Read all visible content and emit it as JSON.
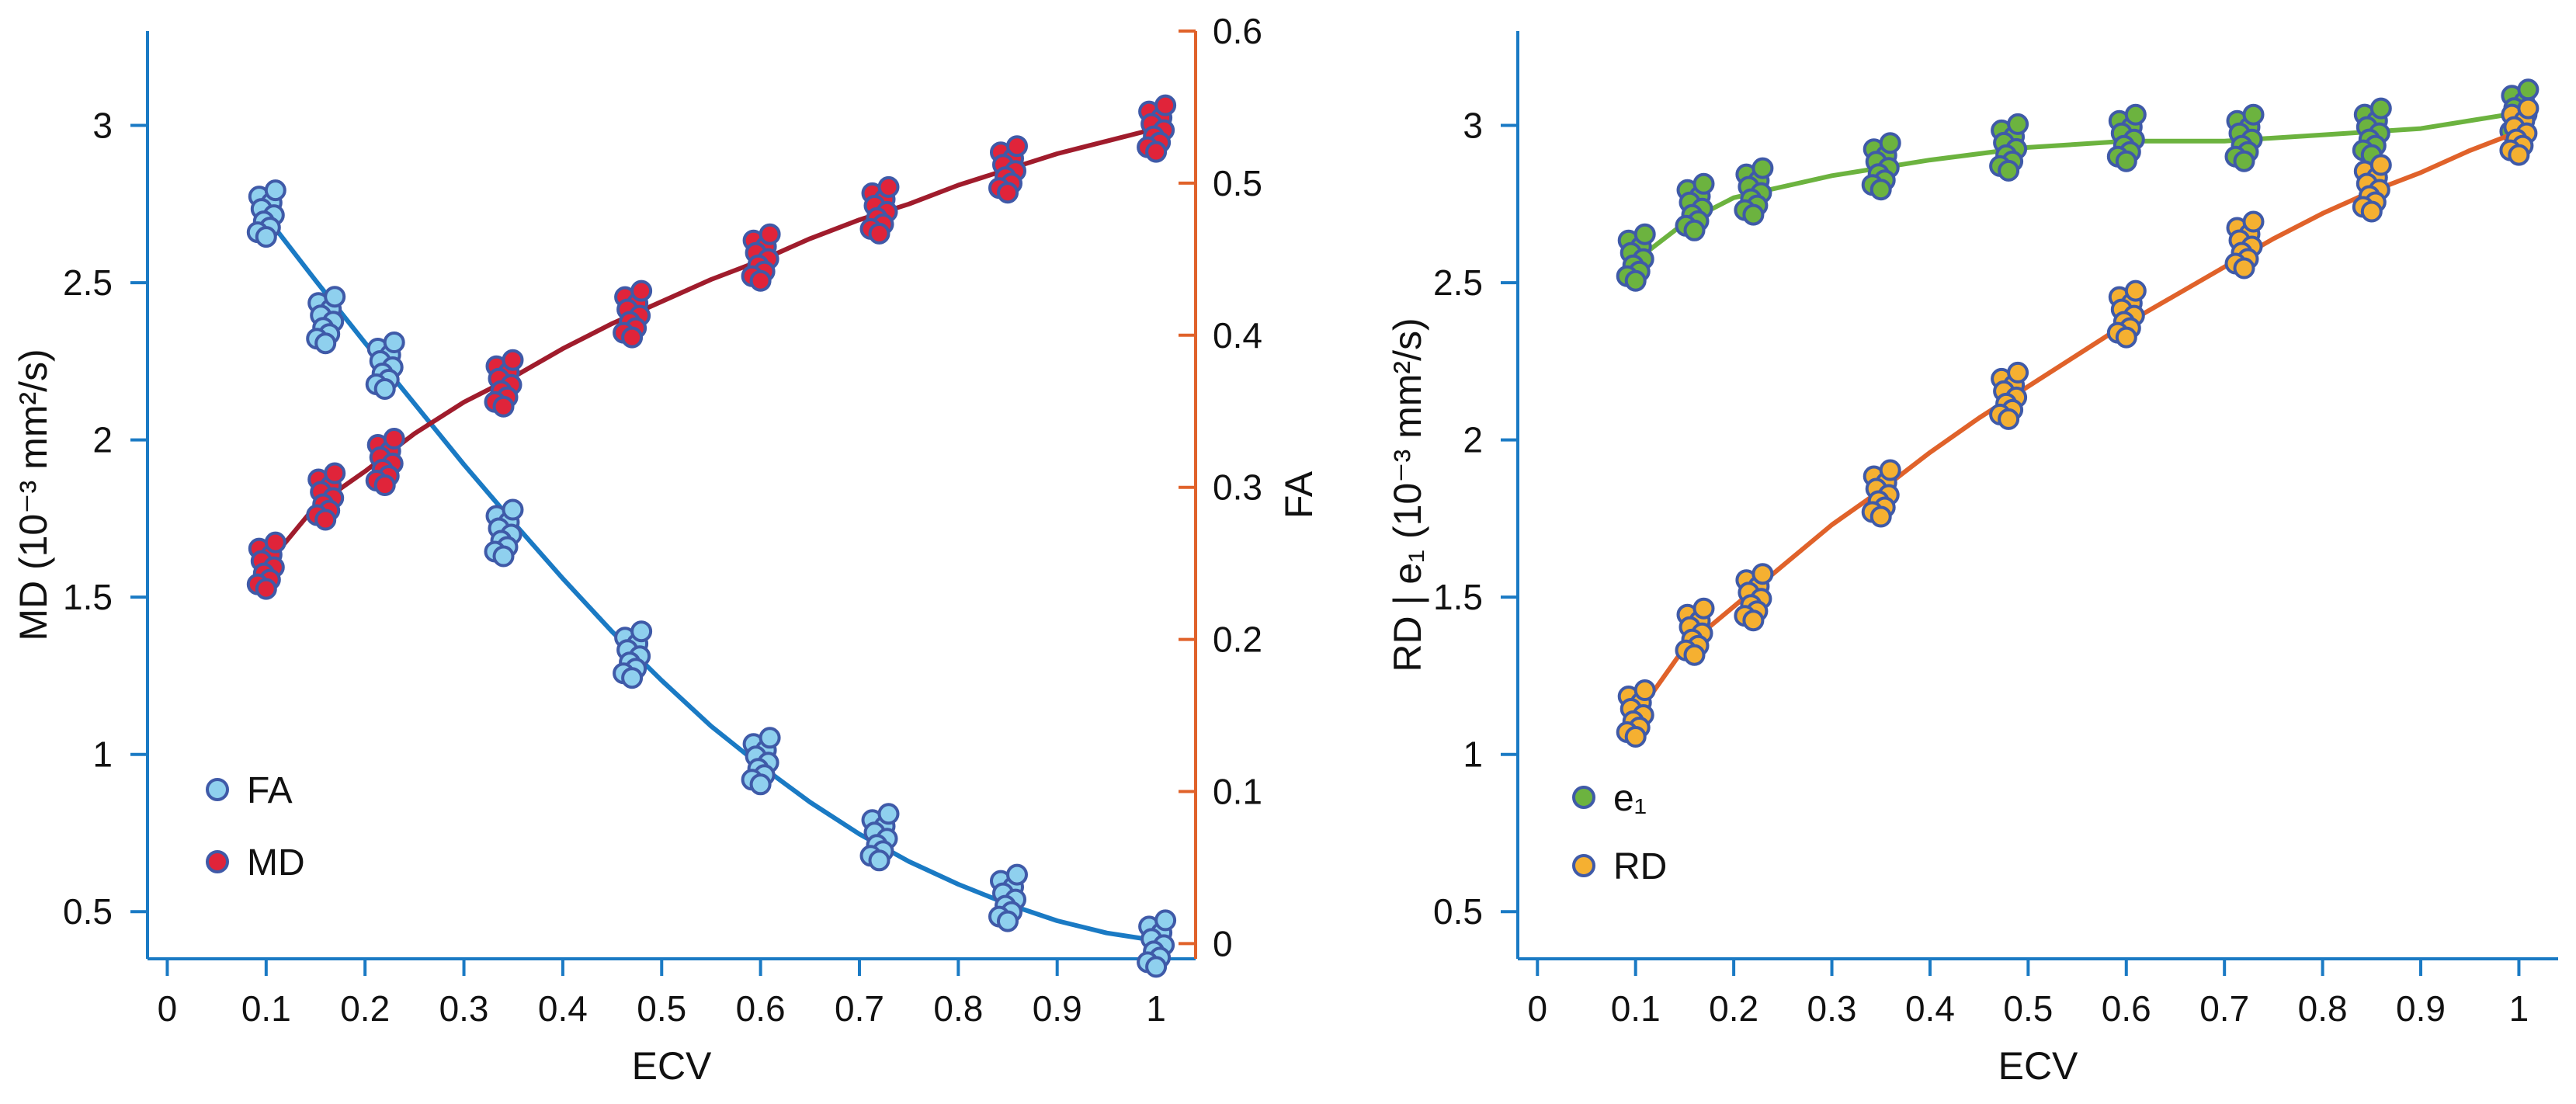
{
  "chart_data": [
    {
      "type": "line",
      "panel": "left",
      "xlabel": "ECV",
      "ylabel": "MD (10⁻³ mm²/s)",
      "ylabel_right": "FA",
      "xlim": [
        -0.02,
        1.04
      ],
      "ylim": [
        0.35,
        3.3
      ],
      "ylim_right": [
        -0.01,
        0.6
      ],
      "xticks": [
        "0",
        "0.1",
        "0.2",
        "0.3",
        "0.4",
        "0.5",
        "0.6",
        "0.7",
        "0.8",
        "0.9",
        "1"
      ],
      "yticks": [
        "0.5",
        "1",
        "1.5",
        "2",
        "2.5",
        "3"
      ],
      "yticks_right": [
        "0",
        "0.1",
        "0.2",
        "0.3",
        "0.4",
        "0.5",
        "0.6"
      ],
      "legend": [
        "FA",
        "MD"
      ],
      "legend_position": "bottom-left",
      "series": [
        {
          "name": "FA",
          "axis": "right",
          "color": "#1a7ac4",
          "marker_fill": "#8fd0ee",
          "marker_edge": "#3f5aa8",
          "x": [
            0.1,
            0.16,
            0.22,
            0.34,
            0.47,
            0.6,
            0.72,
            0.85,
            1.0
          ],
          "values": [
            0.48,
            0.41,
            0.38,
            0.27,
            0.19,
            0.12,
            0.07,
            0.03,
            0.0
          ],
          "curve_x": [
            0.1,
            0.15,
            0.2,
            0.25,
            0.3,
            0.35,
            0.4,
            0.45,
            0.5,
            0.55,
            0.6,
            0.65,
            0.7,
            0.75,
            0.8,
            0.85,
            0.9,
            0.95,
            1.0
          ],
          "curve_y": [
            0.478,
            0.436,
            0.395,
            0.355,
            0.315,
            0.277,
            0.24,
            0.205,
            0.173,
            0.143,
            0.117,
            0.093,
            0.072,
            0.054,
            0.039,
            0.026,
            0.015,
            0.007,
            0.002
          ]
        },
        {
          "name": "MD",
          "axis": "left",
          "color": "#a01c2c",
          "marker_fill": "#e0243a",
          "marker_edge": "#3f5aa8",
          "x": [
            0.1,
            0.16,
            0.22,
            0.34,
            0.47,
            0.6,
            0.72,
            0.85,
            1.0
          ],
          "values": [
            1.6,
            1.82,
            1.93,
            2.18,
            2.4,
            2.58,
            2.73,
            2.86,
            2.99
          ],
          "curve_x": [
            0.1,
            0.15,
            0.2,
            0.25,
            0.3,
            0.35,
            0.4,
            0.45,
            0.5,
            0.55,
            0.6,
            0.65,
            0.7,
            0.75,
            0.8,
            0.85,
            0.9,
            0.95,
            1.0
          ],
          "curve_y": [
            1.6,
            1.79,
            1.9,
            2.02,
            2.12,
            2.2,
            2.29,
            2.37,
            2.44,
            2.51,
            2.57,
            2.64,
            2.7,
            2.75,
            2.81,
            2.86,
            2.91,
            2.95,
            2.99
          ]
        }
      ]
    },
    {
      "type": "line",
      "panel": "right",
      "xlabel": "ECV",
      "ylabel": "RD | e₁ (10⁻³ mm²/s)",
      "xlim": [
        -0.02,
        1.04
      ],
      "ylim": [
        0.35,
        3.3
      ],
      "xticks": [
        "0",
        "0.1",
        "0.2",
        "0.3",
        "0.4",
        "0.5",
        "0.6",
        "0.7",
        "0.8",
        "0.9",
        "1"
      ],
      "yticks": [
        "0.5",
        "1",
        "1.5",
        "2",
        "2.5",
        "3"
      ],
      "legend": [
        "e₁",
        "RD"
      ],
      "legend_position": "bottom-left",
      "series": [
        {
          "name": "e₁",
          "color": "#6cb33f",
          "marker_fill": "#6cb33f",
          "marker_edge": "#3f5aa8",
          "x": [
            0.1,
            0.16,
            0.22,
            0.35,
            0.48,
            0.6,
            0.72,
            0.85,
            1.0
          ],
          "values": [
            2.58,
            2.74,
            2.79,
            2.87,
            2.93,
            2.96,
            2.96,
            2.98,
            3.04
          ],
          "curve_x": [
            0.1,
            0.15,
            0.2,
            0.3,
            0.4,
            0.5,
            0.6,
            0.7,
            0.8,
            0.9,
            1.0
          ],
          "curve_y": [
            2.57,
            2.69,
            2.77,
            2.84,
            2.89,
            2.93,
            2.95,
            2.95,
            2.97,
            2.99,
            3.04
          ]
        },
        {
          "name": "RD",
          "color": "#e0622a",
          "marker_fill": "#f5b031",
          "marker_edge": "#3f5aa8",
          "x": [
            0.1,
            0.16,
            0.22,
            0.35,
            0.48,
            0.6,
            0.72,
            0.85,
            1.0
          ],
          "values": [
            1.13,
            1.39,
            1.5,
            1.83,
            2.14,
            2.4,
            2.62,
            2.8,
            2.98
          ],
          "curve_x": [
            0.1,
            0.15,
            0.2,
            0.25,
            0.3,
            0.35,
            0.4,
            0.45,
            0.5,
            0.55,
            0.6,
            0.65,
            0.7,
            0.75,
            0.8,
            0.85,
            0.9,
            0.95,
            1.0
          ],
          "curve_y": [
            1.12,
            1.34,
            1.47,
            1.6,
            1.73,
            1.84,
            1.96,
            2.07,
            2.17,
            2.27,
            2.37,
            2.46,
            2.55,
            2.64,
            2.72,
            2.79,
            2.85,
            2.92,
            2.98
          ]
        }
      ]
    }
  ]
}
